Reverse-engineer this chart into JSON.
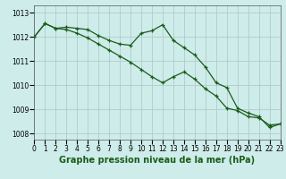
{
  "title": "Graphe pression niveau de la mer (hPa)",
  "background_color": "#ceecea",
  "grid_color": "#b0cccc",
  "line_color": "#1a5c1a",
  "marker_color": "#1a5c1a",
  "series1": {
    "x": [
      0,
      1,
      2,
      3,
      4,
      5,
      6,
      7,
      8,
      9,
      10,
      11,
      12,
      13,
      14,
      15,
      16,
      17,
      18,
      19,
      20,
      21,
      22,
      23
    ],
    "y": [
      1012.0,
      1012.55,
      1012.35,
      1012.4,
      1012.35,
      1012.3,
      1012.05,
      1011.85,
      1011.7,
      1011.65,
      1012.15,
      1012.25,
      1012.5,
      1011.85,
      1011.55,
      1011.25,
      1010.75,
      1010.1,
      1009.9,
      1009.05,
      1008.85,
      1008.7,
      1008.25,
      1008.4
    ]
  },
  "series2": {
    "x": [
      0,
      1,
      2,
      3,
      4,
      5,
      6,
      7,
      8,
      9,
      10,
      11,
      12,
      13,
      14,
      15,
      16,
      17,
      18,
      19,
      20,
      21,
      22,
      23
    ],
    "y": [
      1012.0,
      1012.55,
      1012.35,
      1012.3,
      1012.15,
      1011.95,
      1011.7,
      1011.45,
      1011.2,
      1010.95,
      1010.65,
      1010.35,
      1010.1,
      1010.35,
      1010.55,
      1010.25,
      1009.85,
      1009.55,
      1009.05,
      1008.95,
      1008.7,
      1008.65,
      1008.35,
      1008.4
    ]
  },
  "xlim": [
    0,
    23
  ],
  "ylim": [
    1007.75,
    1013.3
  ],
  "yticks": [
    1008,
    1009,
    1010,
    1011,
    1012,
    1013
  ],
  "xticks": [
    0,
    1,
    2,
    3,
    4,
    5,
    6,
    7,
    8,
    9,
    10,
    11,
    12,
    13,
    14,
    15,
    16,
    17,
    18,
    19,
    20,
    21,
    22,
    23
  ],
  "title_fontsize": 7.0,
  "tick_fontsize": 5.5,
  "title_color": "#1a5c1a",
  "ylabel_fontsize": 5.5
}
